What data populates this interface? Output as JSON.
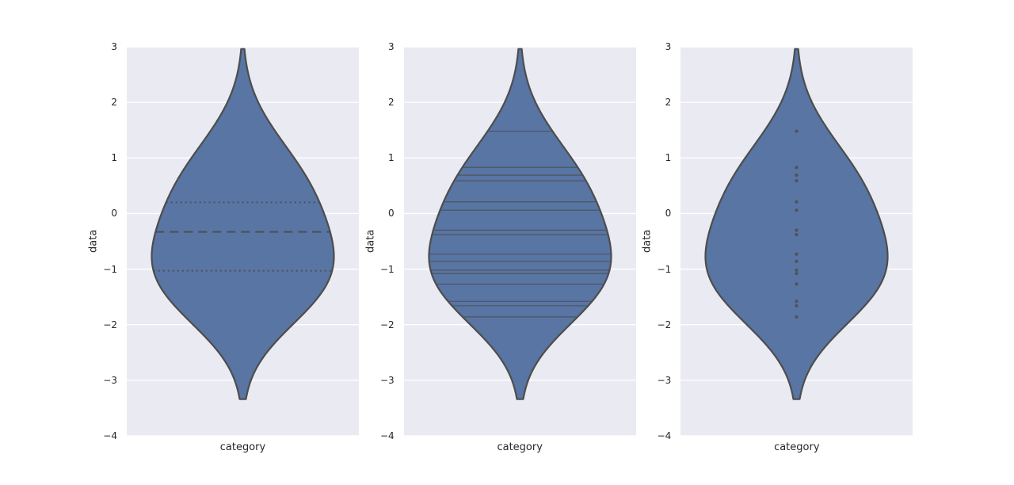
{
  "figure": {
    "background": "#ffffff",
    "axes_background": "#eaeaf2",
    "grid_color": "#ffffff",
    "text_color": "#262626"
  },
  "chart_data": {
    "type": "violin",
    "title": "",
    "xlabel": "category",
    "ylabel": "data",
    "categories": [
      "category"
    ],
    "ylim": [
      -4,
      3
    ],
    "yticks": [
      3,
      2,
      1,
      0,
      -1,
      -2,
      -3,
      -4
    ],
    "ytick_labels": [
      "3",
      "2",
      "1",
      "0",
      "−1",
      "−2",
      "−3",
      "−4"
    ],
    "grid": true,
    "legend": false,
    "observations": [
      1.48,
      0.83,
      0.69,
      0.59,
      0.21,
      0.06,
      -0.3,
      -0.38,
      -0.73,
      -0.86,
      -1.02,
      -1.08,
      -1.27,
      -1.58,
      -1.66,
      -1.86
    ],
    "quartiles": {
      "q1": -1.03,
      "median": -0.33,
      "q3": 0.2
    },
    "kde_bandwidth": 0.74,
    "cut": 2,
    "violin_fill": "#5875a4",
    "violin_edge": "#4d4d4d",
    "inner_color": "#4d4d4d",
    "panels": [
      {
        "inner": "quartile",
        "xlabel": "category",
        "ylabel": "data"
      },
      {
        "inner": "stick",
        "xlabel": "category",
        "ylabel": "data"
      },
      {
        "inner": "point",
        "xlabel": "category",
        "ylabel": "data"
      }
    ]
  }
}
